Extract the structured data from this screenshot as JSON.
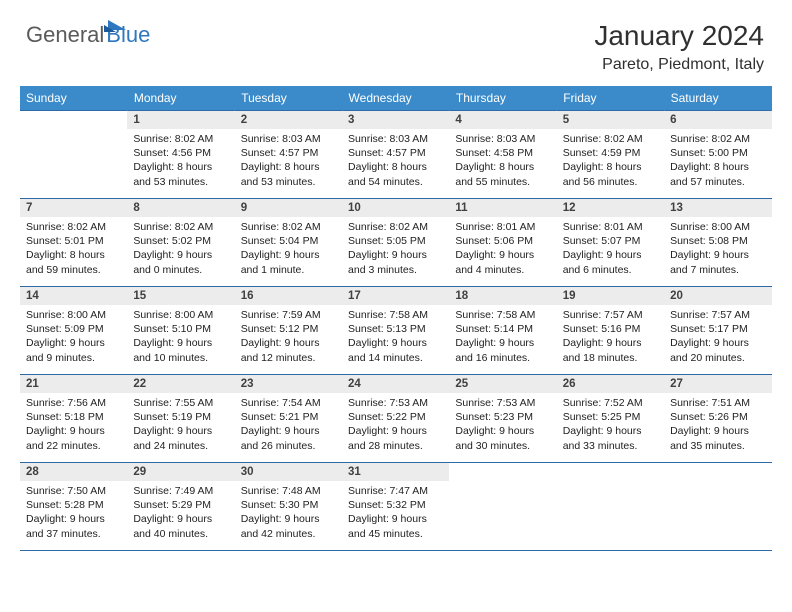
{
  "logo": {
    "text1": "General",
    "text2": "Blue",
    "color1": "#5a5a5a",
    "color2": "#2f78c0"
  },
  "header": {
    "month": "January 2024",
    "location": "Pareto, Piedmont, Italy"
  },
  "style": {
    "header_bg": "#3b8bca",
    "header_fg": "#ffffff",
    "border_color": "#2f6aa8",
    "daynum_bg": "#ececec",
    "font_family": "Arial"
  },
  "weekdays": [
    "Sunday",
    "Monday",
    "Tuesday",
    "Wednesday",
    "Thursday",
    "Friday",
    "Saturday"
  ],
  "weeks": [
    [
      {
        "empty": true
      },
      {
        "n": "1",
        "sr": "8:02 AM",
        "ss": "4:56 PM",
        "dl": "8 hours and 53 minutes."
      },
      {
        "n": "2",
        "sr": "8:03 AM",
        "ss": "4:57 PM",
        "dl": "8 hours and 53 minutes."
      },
      {
        "n": "3",
        "sr": "8:03 AM",
        "ss": "4:57 PM",
        "dl": "8 hours and 54 minutes."
      },
      {
        "n": "4",
        "sr": "8:03 AM",
        "ss": "4:58 PM",
        "dl": "8 hours and 55 minutes."
      },
      {
        "n": "5",
        "sr": "8:02 AM",
        "ss": "4:59 PM",
        "dl": "8 hours and 56 minutes."
      },
      {
        "n": "6",
        "sr": "8:02 AM",
        "ss": "5:00 PM",
        "dl": "8 hours and 57 minutes."
      }
    ],
    [
      {
        "n": "7",
        "sr": "8:02 AM",
        "ss": "5:01 PM",
        "dl": "8 hours and 59 minutes."
      },
      {
        "n": "8",
        "sr": "8:02 AM",
        "ss": "5:02 PM",
        "dl": "9 hours and 0 minutes."
      },
      {
        "n": "9",
        "sr": "8:02 AM",
        "ss": "5:04 PM",
        "dl": "9 hours and 1 minute."
      },
      {
        "n": "10",
        "sr": "8:02 AM",
        "ss": "5:05 PM",
        "dl": "9 hours and 3 minutes."
      },
      {
        "n": "11",
        "sr": "8:01 AM",
        "ss": "5:06 PM",
        "dl": "9 hours and 4 minutes."
      },
      {
        "n": "12",
        "sr": "8:01 AM",
        "ss": "5:07 PM",
        "dl": "9 hours and 6 minutes."
      },
      {
        "n": "13",
        "sr": "8:00 AM",
        "ss": "5:08 PM",
        "dl": "9 hours and 7 minutes."
      }
    ],
    [
      {
        "n": "14",
        "sr": "8:00 AM",
        "ss": "5:09 PM",
        "dl": "9 hours and 9 minutes."
      },
      {
        "n": "15",
        "sr": "8:00 AM",
        "ss": "5:10 PM",
        "dl": "9 hours and 10 minutes."
      },
      {
        "n": "16",
        "sr": "7:59 AM",
        "ss": "5:12 PM",
        "dl": "9 hours and 12 minutes."
      },
      {
        "n": "17",
        "sr": "7:58 AM",
        "ss": "5:13 PM",
        "dl": "9 hours and 14 minutes."
      },
      {
        "n": "18",
        "sr": "7:58 AM",
        "ss": "5:14 PM",
        "dl": "9 hours and 16 minutes."
      },
      {
        "n": "19",
        "sr": "7:57 AM",
        "ss": "5:16 PM",
        "dl": "9 hours and 18 minutes."
      },
      {
        "n": "20",
        "sr": "7:57 AM",
        "ss": "5:17 PM",
        "dl": "9 hours and 20 minutes."
      }
    ],
    [
      {
        "n": "21",
        "sr": "7:56 AM",
        "ss": "5:18 PM",
        "dl": "9 hours and 22 minutes."
      },
      {
        "n": "22",
        "sr": "7:55 AM",
        "ss": "5:19 PM",
        "dl": "9 hours and 24 minutes."
      },
      {
        "n": "23",
        "sr": "7:54 AM",
        "ss": "5:21 PM",
        "dl": "9 hours and 26 minutes."
      },
      {
        "n": "24",
        "sr": "7:53 AM",
        "ss": "5:22 PM",
        "dl": "9 hours and 28 minutes."
      },
      {
        "n": "25",
        "sr": "7:53 AM",
        "ss": "5:23 PM",
        "dl": "9 hours and 30 minutes."
      },
      {
        "n": "26",
        "sr": "7:52 AM",
        "ss": "5:25 PM",
        "dl": "9 hours and 33 minutes."
      },
      {
        "n": "27",
        "sr": "7:51 AM",
        "ss": "5:26 PM",
        "dl": "9 hours and 35 minutes."
      }
    ],
    [
      {
        "n": "28",
        "sr": "7:50 AM",
        "ss": "5:28 PM",
        "dl": "9 hours and 37 minutes."
      },
      {
        "n": "29",
        "sr": "7:49 AM",
        "ss": "5:29 PM",
        "dl": "9 hours and 40 minutes."
      },
      {
        "n": "30",
        "sr": "7:48 AM",
        "ss": "5:30 PM",
        "dl": "9 hours and 42 minutes."
      },
      {
        "n": "31",
        "sr": "7:47 AM",
        "ss": "5:32 PM",
        "dl": "9 hours and 45 minutes."
      },
      {
        "empty": true
      },
      {
        "empty": true
      },
      {
        "empty": true
      }
    ]
  ]
}
